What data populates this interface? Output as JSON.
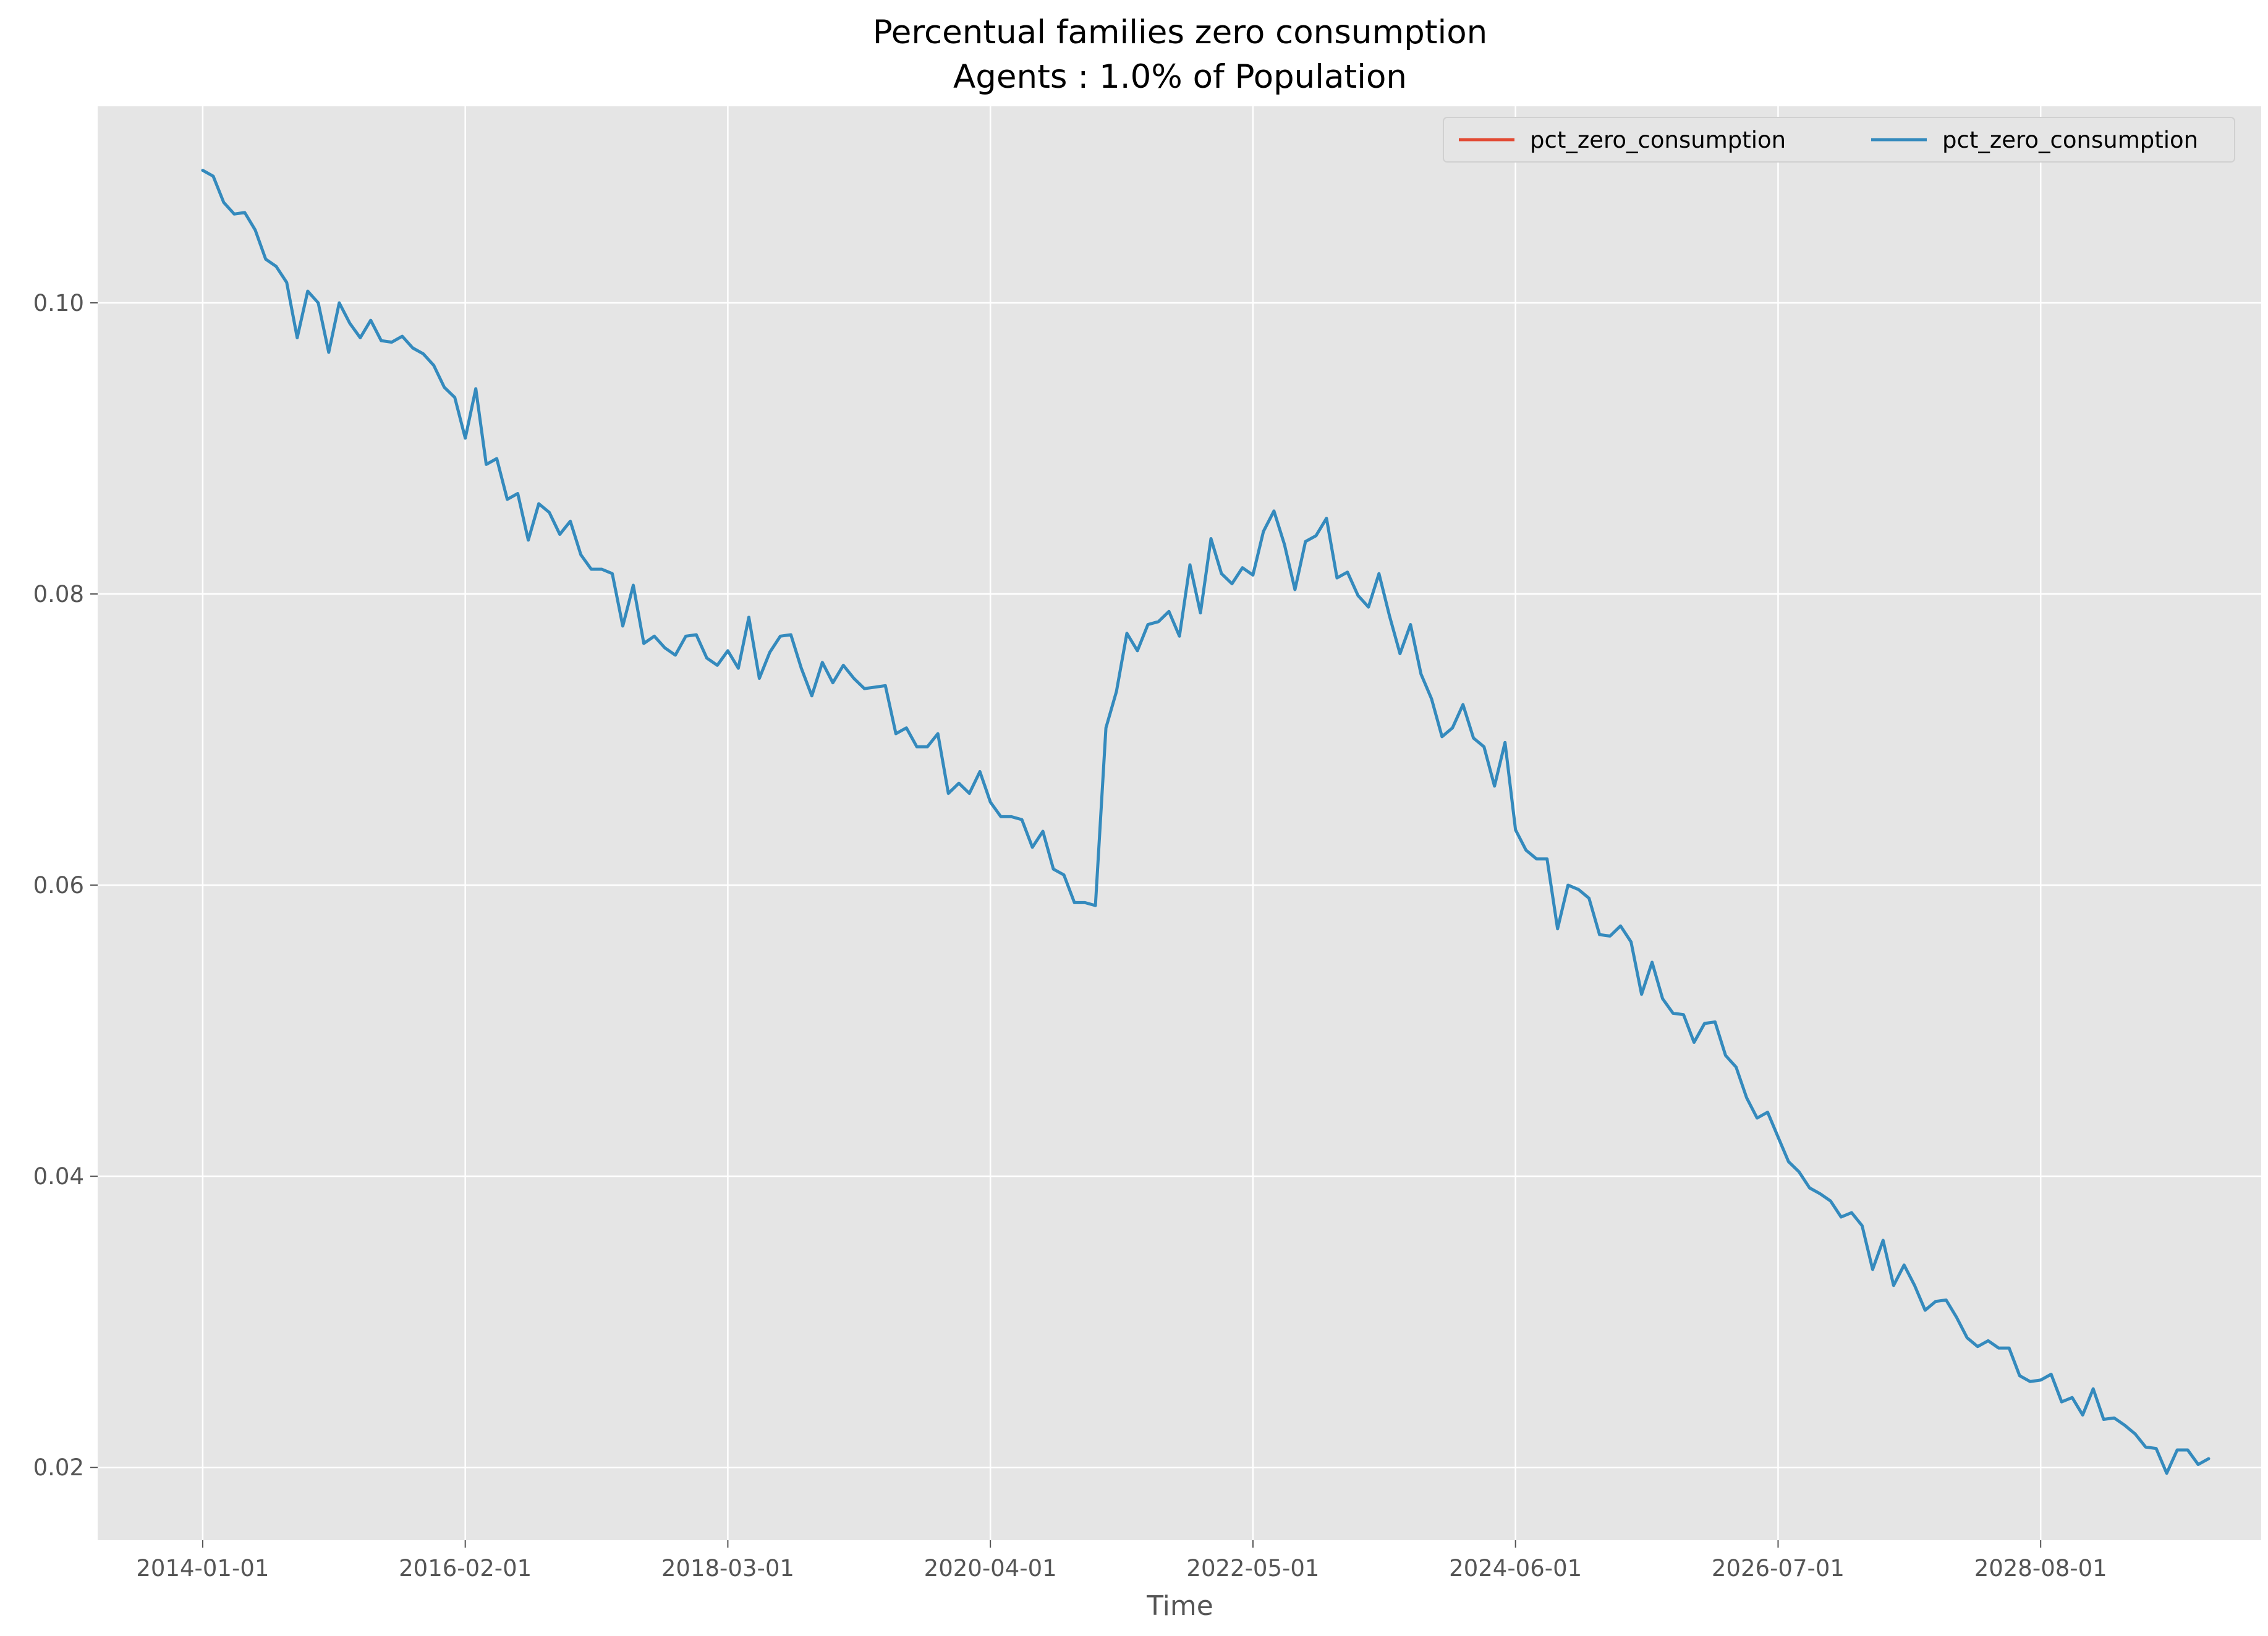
{
  "chart_data": {
    "type": "line",
    "title": [
      "Percentual families zero consumption",
      "Agents : 1.0% of Population"
    ],
    "xlabel": "Time",
    "ylabel": "",
    "x_ticks": [
      "2014-01-01",
      "2016-02-01",
      "2018-03-01",
      "2020-04-01",
      "2022-05-01",
      "2024-06-01",
      "2026-07-01",
      "2028-08-01"
    ],
    "y_ticks": [
      0.02,
      0.04,
      0.06,
      0.08,
      0.1
    ],
    "y_tick_labels": [
      "0.02",
      "0.04",
      "0.06",
      "0.08",
      "0.10"
    ],
    "xlim": [
      "2013-03-01",
      "2030-05-01"
    ],
    "ylim": [
      0.015,
      0.1135
    ],
    "grid": true,
    "legend_position": "top-right",
    "legend_columns": 2,
    "x_start": "2014-01-01",
    "x_step": "1 month",
    "series": [
      {
        "name": "pct_zero_consumption",
        "color": "#E24A33",
        "values": []
      },
      {
        "name": "pct_zero_consumption",
        "color": "#348ABD",
        "values": [
          0.1091,
          0.1087,
          0.1069,
          0.1061,
          0.1062,
          0.105,
          0.103,
          0.1025,
          0.1014,
          0.0976,
          0.1008,
          0.1,
          0.0966,
          0.1,
          0.0986,
          0.0976,
          0.0988,
          0.0974,
          0.0973,
          0.0977,
          0.0969,
          0.0965,
          0.0957,
          0.0942,
          0.0935,
          0.0907,
          0.0941,
          0.0889,
          0.0893,
          0.0865,
          0.0869,
          0.0837,
          0.0862,
          0.0856,
          0.0841,
          0.085,
          0.0827,
          0.0817,
          0.0817,
          0.0814,
          0.0778,
          0.0806,
          0.0766,
          0.0771,
          0.0763,
          0.0758,
          0.0771,
          0.0772,
          0.0756,
          0.0751,
          0.0761,
          0.0749,
          0.0784,
          0.0742,
          0.076,
          0.0771,
          0.0772,
          0.0749,
          0.073,
          0.0753,
          0.0739,
          0.0751,
          0.0742,
          0.0735,
          0.0736,
          0.0737,
          0.0704,
          0.0708,
          0.0695,
          0.0695,
          0.0704,
          0.0663,
          0.067,
          0.0663,
          0.0678,
          0.0657,
          0.0647,
          0.0647,
          0.0645,
          0.0626,
          0.0637,
          0.0611,
          0.0607,
          0.0588,
          0.0588,
          0.0586,
          0.0708,
          0.0733,
          0.0773,
          0.0761,
          0.0779,
          0.0781,
          0.0788,
          0.0771,
          0.082,
          0.0787,
          0.0838,
          0.0814,
          0.0807,
          0.0818,
          0.0813,
          0.0843,
          0.0857,
          0.0834,
          0.0803,
          0.0836,
          0.084,
          0.0852,
          0.0811,
          0.0815,
          0.0799,
          0.0791,
          0.0814,
          0.0785,
          0.0759,
          0.0779,
          0.0745,
          0.0728,
          0.0702,
          0.0708,
          0.0724,
          0.0701,
          0.0695,
          0.0668,
          0.0698,
          0.0638,
          0.0624,
          0.0618,
          0.0618,
          0.057,
          0.06,
          0.0597,
          0.0591,
          0.0566,
          0.0565,
          0.0572,
          0.0561,
          0.0525,
          0.0547,
          0.0522,
          0.0512,
          0.0511,
          0.0492,
          0.0505,
          0.0506,
          0.0483,
          0.0475,
          0.0454,
          0.044,
          0.0444,
          0.0427,
          0.041,
          0.0403,
          0.0392,
          0.0388,
          0.0383,
          0.0372,
          0.0375,
          0.0366,
          0.0336,
          0.0356,
          0.0325,
          0.0339,
          0.0325,
          0.0308,
          0.0314,
          0.0315,
          0.0303,
          0.0289,
          0.0283,
          0.0287,
          0.0282,
          0.0282,
          0.0263,
          0.0259,
          0.026,
          0.0264,
          0.0245,
          0.0248,
          0.0236,
          0.0254,
          0.0233,
          0.0234,
          0.0229,
          0.0223,
          0.0214,
          0.0213,
          0.0196,
          0.0212,
          0.0212,
          0.0202,
          0.0206
        ]
      }
    ]
  }
}
